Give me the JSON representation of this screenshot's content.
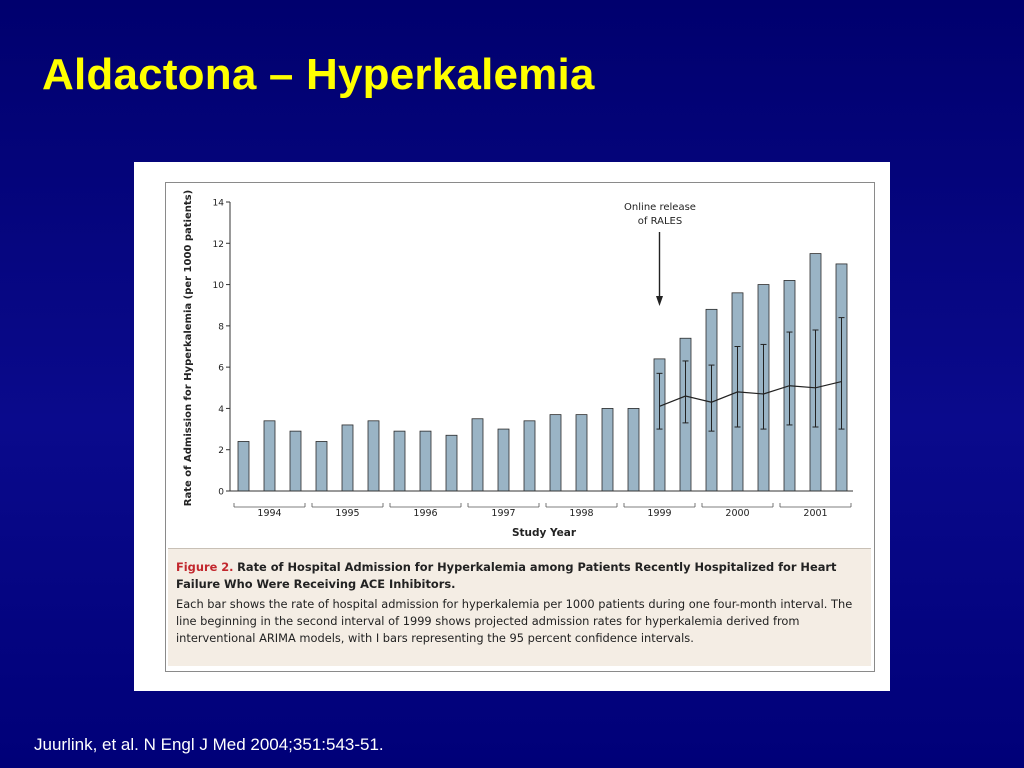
{
  "slide": {
    "title": "Aldactona – Hyperkalemia",
    "citation": "Juurlink, et al. N Engl J Med 2004;351:543-51."
  },
  "caption": {
    "label": "Figure 2.",
    "title": "Rate of Hospital Admission for Hyperkalemia among Patients Recently Hospitalized for Heart Failure Who Were Receiving ACE Inhibitors.",
    "body": "Each bar shows the rate of hospital admission for hyperkalemia per 1000 patients during one four-month interval. The line beginning in the second interval of 1999 shows projected admission rates for hyperkalemia derived from interventional ARIMA models, with I bars representing the 95 percent confidence intervals."
  },
  "chart_data": {
    "type": "bar",
    "xlabel": "Study Year",
    "ylabel": "Rate of Admission for Hyperkalemia (per 1000 patients)",
    "ylim": [
      0,
      14
    ],
    "yticks": [
      0,
      2,
      4,
      6,
      8,
      10,
      12,
      14
    ],
    "years": [
      "1994",
      "1995",
      "1996",
      "1997",
      "1998",
      "1999",
      "2000",
      "2001"
    ],
    "intervals_per_year": 3,
    "values": [
      2.4,
      3.4,
      2.9,
      2.4,
      3.2,
      3.4,
      2.9,
      2.9,
      2.7,
      3.5,
      3.0,
      3.4,
      3.7,
      3.7,
      4.0,
      4.0,
      6.4,
      7.4,
      8.8,
      9.6,
      10.0,
      10.2,
      11.5,
      11.0
    ],
    "projection": {
      "start_index": 16,
      "values": [
        4.1,
        4.6,
        4.3,
        4.8,
        4.7,
        5.1,
        5.0,
        5.3
      ],
      "ci_low": [
        3.0,
        3.3,
        2.9,
        3.1,
        3.0,
        3.2,
        3.1,
        3.0
      ],
      "ci_high": [
        5.7,
        6.3,
        6.1,
        7.0,
        7.1,
        7.7,
        7.8,
        8.4
      ]
    },
    "annotation": {
      "lines": [
        "Online release",
        "of RALES"
      ],
      "index": 16
    },
    "bar_color": "#9ab4c5",
    "grid": false,
    "legend": "none"
  }
}
